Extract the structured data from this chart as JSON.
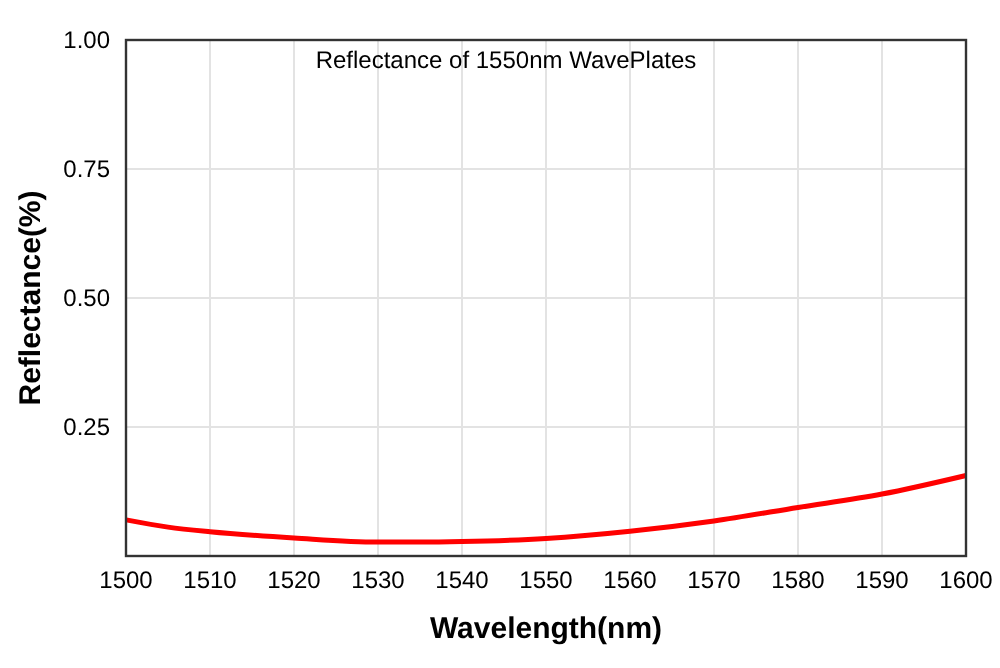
{
  "chart_data": {
    "type": "line",
    "title": "Reflectance of 1550nm WavePlates",
    "xlabel": "Wavelength(nm)",
    "ylabel": "Reflectance(%)",
    "x": [
      1500,
      1505,
      1510,
      1520,
      1530,
      1535,
      1540,
      1550,
      1560,
      1570,
      1580,
      1590,
      1600
    ],
    "series": [
      {
        "color": "#ff0000",
        "values": [
          0.07,
          0.056,
          0.047,
          0.035,
          0.027,
          0.027,
          0.028,
          0.034,
          0.048,
          0.068,
          0.094,
          0.12,
          0.156
        ]
      }
    ],
    "xlim": [
      1500,
      1600
    ],
    "xticks": [
      1500,
      1510,
      1520,
      1530,
      1540,
      1550,
      1560,
      1570,
      1580,
      1590,
      1600
    ],
    "ylim": [
      0,
      1
    ],
    "yticks": [
      {
        "value": 0.25,
        "label": "0.25"
      },
      {
        "value": 0.5,
        "label": "0.50"
      },
      {
        "value": 0.75,
        "label": "0.75"
      },
      {
        "value": 1,
        "label": "1.00"
      }
    ],
    "grid": true,
    "line_style": "solid",
    "marker": "none"
  }
}
